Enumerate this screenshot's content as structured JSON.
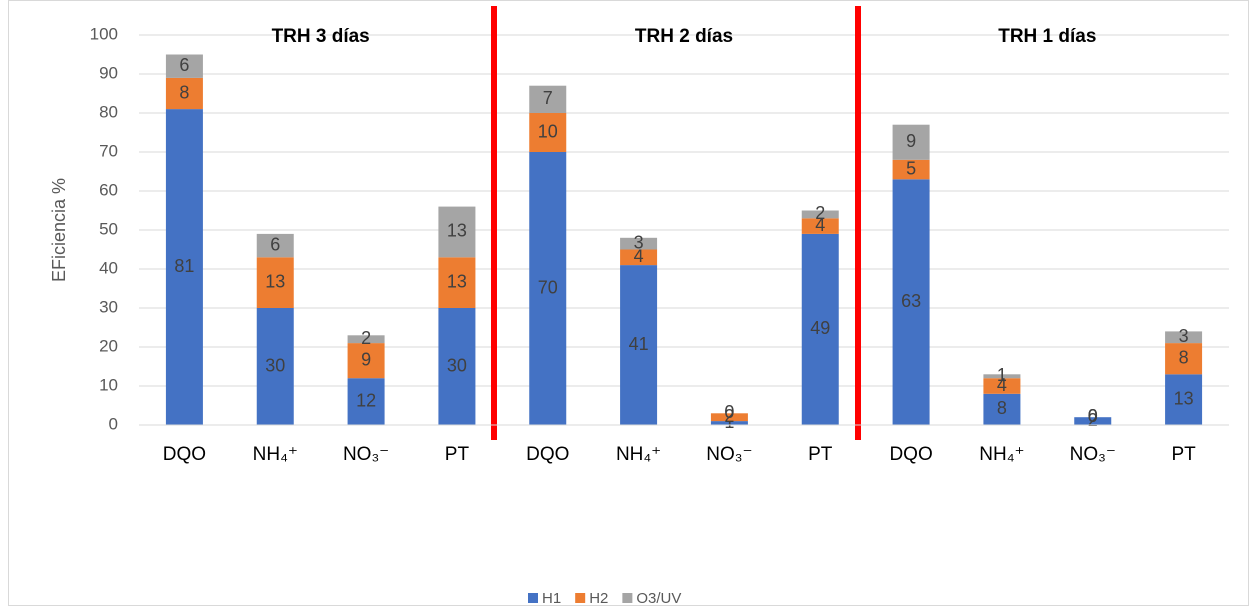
{
  "chart_data": {
    "type": "stacked_bar",
    "annotations": [
      "TRH 3 días",
      "TRH 2 días",
      "TRH 1 días"
    ],
    "y_label": "EFiciencia %",
    "categories": [
      "DQO",
      "NH₄⁺",
      "NO₃⁻",
      "PT",
      "DQO",
      "NH₄⁺",
      "NO₃⁻",
      "PT",
      "DQO",
      "NH₄⁺",
      "NO₃⁻",
      "PT"
    ],
    "series": [
      {
        "name": "H1",
        "color": "#4472c4",
        "values": [
          81,
          30,
          12,
          30,
          70,
          41,
          1,
          49,
          63,
          8,
          2,
          13
        ]
      },
      {
        "name": "H2",
        "color": "#ed7d31",
        "values": [
          8,
          13,
          9,
          13,
          10,
          4,
          2,
          4,
          5,
          4,
          0,
          8
        ]
      },
      {
        "name": "O3/UV",
        "color": "#a5a5a5",
        "values": [
          6,
          6,
          2,
          13,
          7,
          3,
          0,
          2,
          9,
          1,
          0,
          3
        ]
      }
    ],
    "ylim": [
      0,
      100
    ],
    "yticks": [
      0,
      10,
      20,
      30,
      40,
      50,
      60,
      70,
      80,
      90,
      100
    ],
    "grid": true,
    "legend": "bottom"
  }
}
